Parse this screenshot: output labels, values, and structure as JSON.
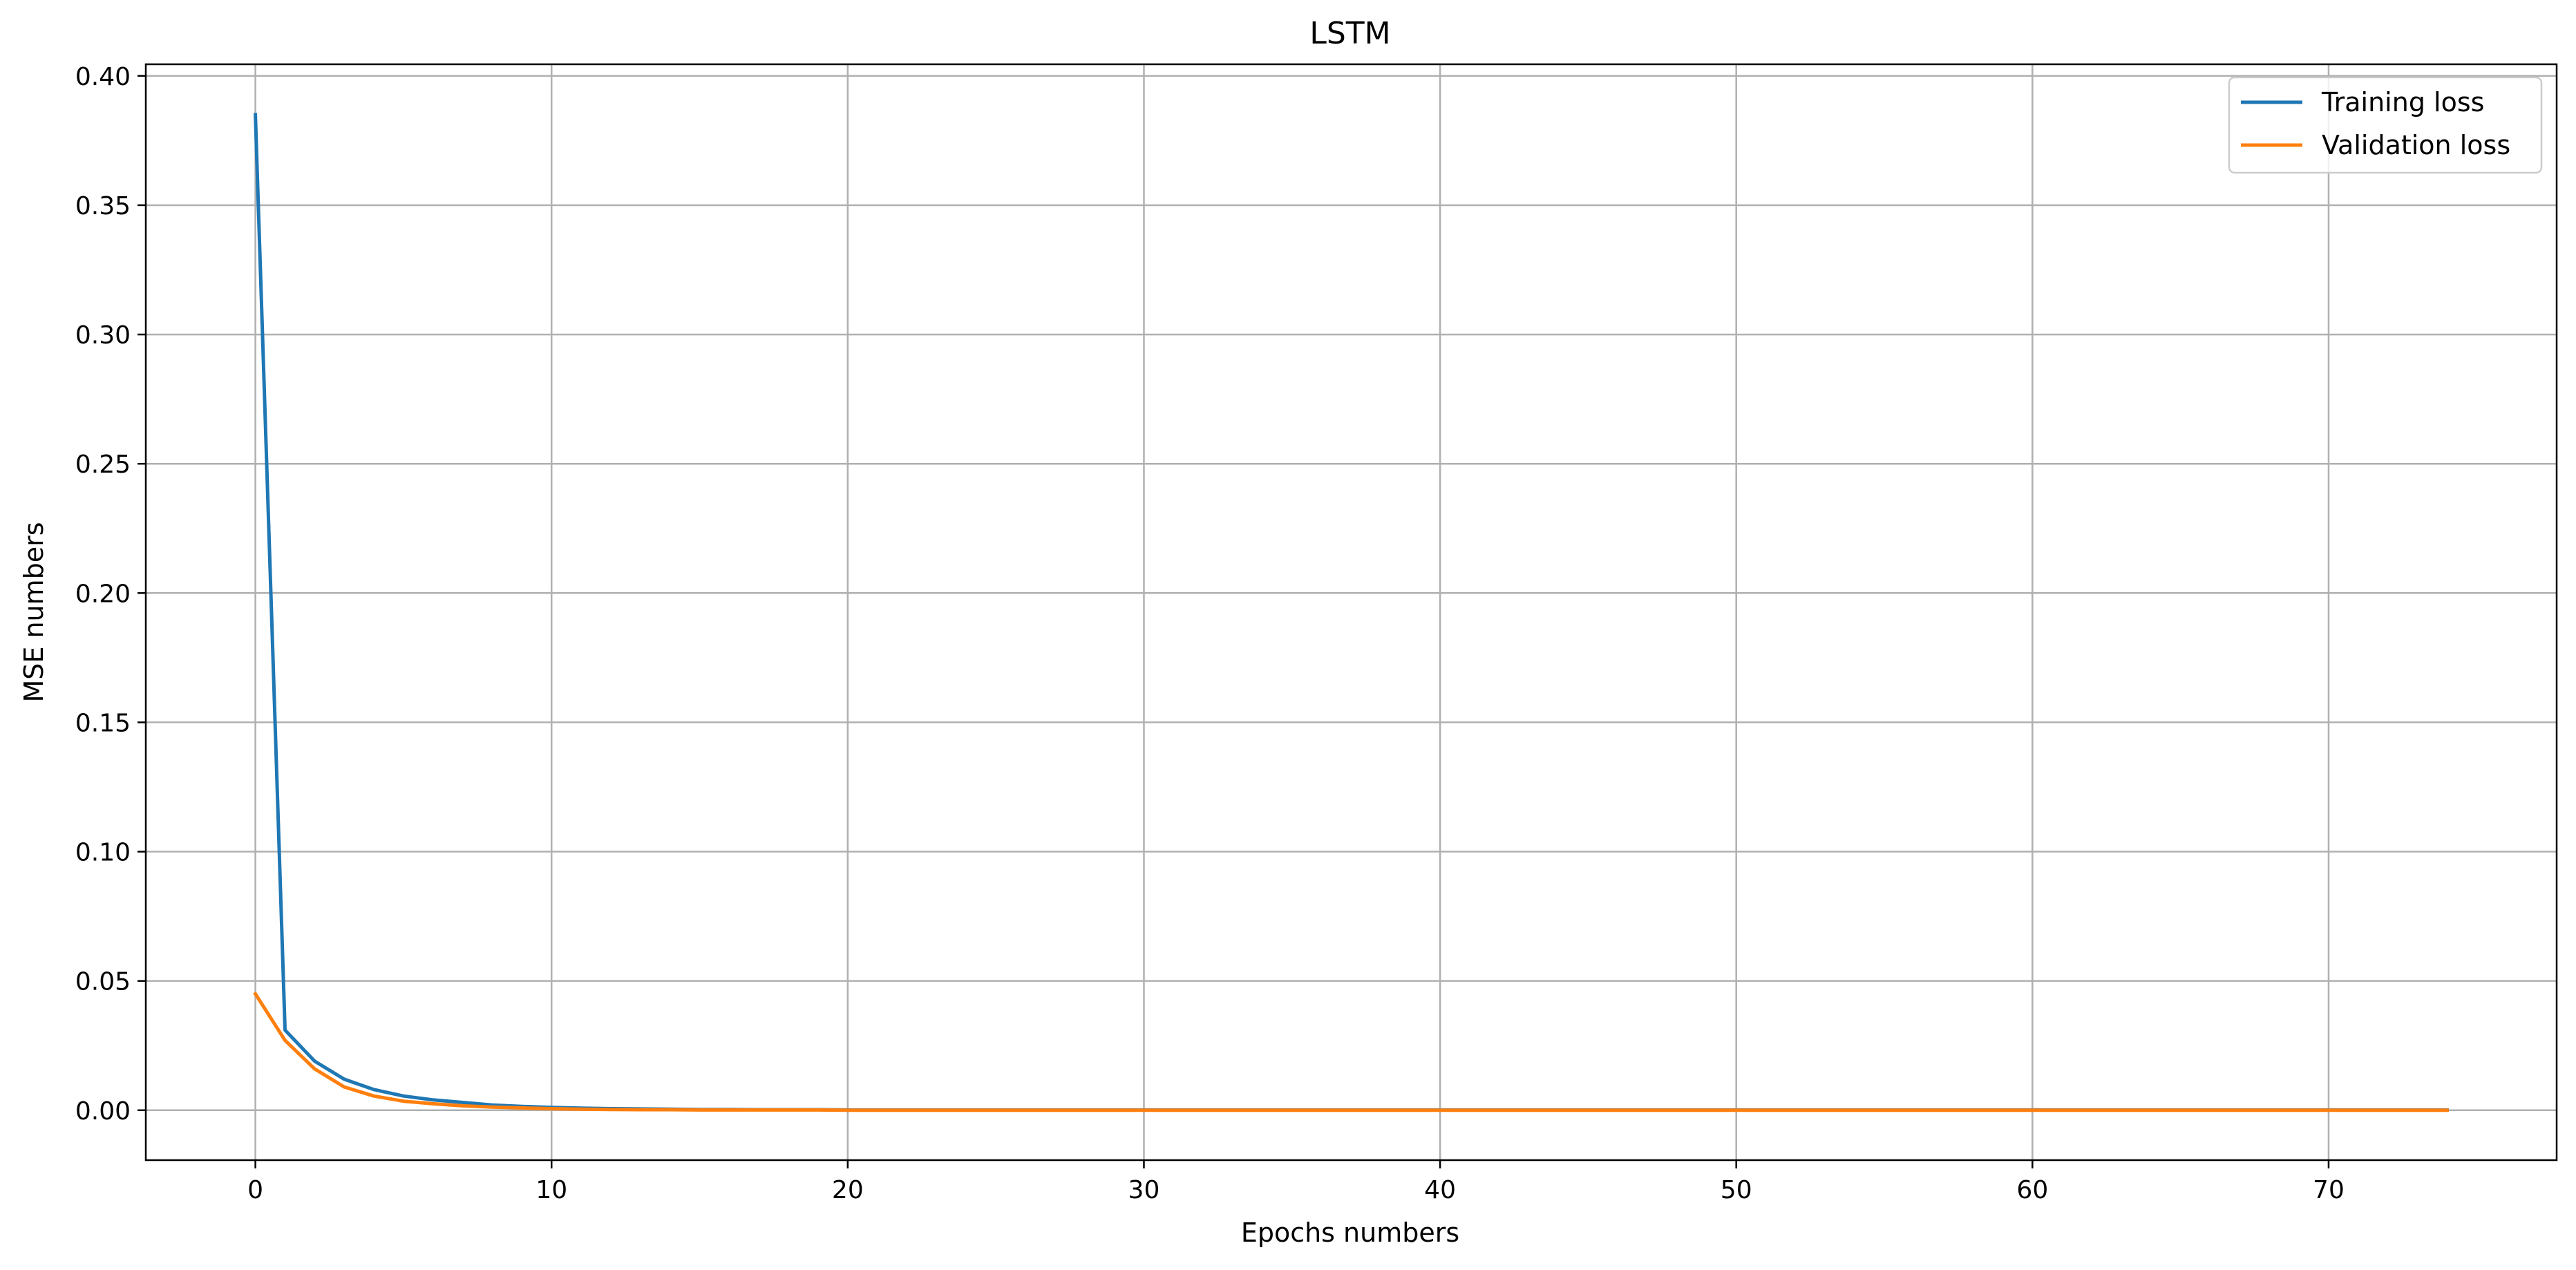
{
  "chart_data": {
    "type": "line",
    "title": "LSTM",
    "xlabel": "Epochs numbers",
    "ylabel": "MSE numbers",
    "xlim": [
      -3.7,
      77.7
    ],
    "ylim": [
      -0.0193,
      0.4045
    ],
    "xticks": [
      0,
      10,
      20,
      30,
      40,
      50,
      60,
      70
    ],
    "xtick_labels": [
      "0",
      "10",
      "20",
      "30",
      "40",
      "50",
      "60",
      "70"
    ],
    "yticks": [
      0.0,
      0.05,
      0.1,
      0.15,
      0.2,
      0.25,
      0.3,
      0.35,
      0.4
    ],
    "ytick_labels": [
      "0.00",
      "0.05",
      "0.10",
      "0.15",
      "0.20",
      "0.25",
      "0.30",
      "0.35",
      "0.40"
    ],
    "grid": true,
    "legend_position": "top-right",
    "series": [
      {
        "name": "Training loss",
        "color": "#1f77b4",
        "x": [
          0,
          1,
          2,
          3,
          4,
          5,
          6,
          7,
          8,
          9,
          10,
          11,
          12,
          13,
          14,
          15,
          16,
          17,
          18,
          19,
          20,
          21,
          22,
          23,
          24,
          25,
          26,
          27,
          28,
          29,
          30,
          31,
          32,
          33,
          34,
          35,
          36,
          37,
          38,
          39,
          40,
          41,
          42,
          43,
          44,
          45,
          46,
          47,
          48,
          49,
          50,
          51,
          52,
          53,
          54,
          55,
          56,
          57,
          58,
          59,
          60,
          61,
          62,
          63,
          64,
          65,
          66,
          67,
          68,
          69,
          70,
          71,
          72,
          73,
          74
        ],
        "values": [
          0.385,
          0.031,
          0.019,
          0.012,
          0.008,
          0.0055,
          0.004,
          0.003,
          0.002,
          0.0015,
          0.0011,
          0.0008,
          0.0006,
          0.0005,
          0.0004,
          0.0003,
          0.0003,
          0.0002,
          0.0002,
          0.0002,
          0.0001,
          0.0001,
          0.0001,
          0.0001,
          0.0001,
          0.0001,
          0.0001,
          0.0001,
          0.0001,
          0.0001,
          0.0001,
          0.0001,
          0.0001,
          0.0001,
          0.0001,
          0.0001,
          0.0001,
          0.0001,
          0.0001,
          0.0001,
          0.0001,
          0.0001,
          0.0001,
          0.0001,
          0.0001,
          0.0001,
          0.0001,
          0.0001,
          0.0001,
          0.0001,
          0.0001,
          0.0001,
          0.0001,
          0.0001,
          0.0001,
          0.0001,
          0.0001,
          0.0001,
          0.0001,
          0.0001,
          0.0001,
          0.0001,
          0.0001,
          0.0001,
          0.0001,
          0.0001,
          0.0001,
          0.0001,
          0.0001,
          0.0001,
          0.0001,
          0.0001,
          0.0001,
          0.0001,
          0.0001
        ]
      },
      {
        "name": "Validation loss",
        "color": "#ff7f0e",
        "x": [
          0,
          1,
          2,
          3,
          4,
          5,
          6,
          7,
          8,
          9,
          10,
          11,
          12,
          13,
          14,
          15,
          16,
          17,
          18,
          19,
          20,
          21,
          22,
          23,
          24,
          25,
          26,
          27,
          28,
          29,
          30,
          31,
          32,
          33,
          34,
          35,
          36,
          37,
          38,
          39,
          40,
          41,
          42,
          43,
          44,
          45,
          46,
          47,
          48,
          49,
          50,
          51,
          52,
          53,
          54,
          55,
          56,
          57,
          58,
          59,
          60,
          61,
          62,
          63,
          64,
          65,
          66,
          67,
          68,
          69,
          70,
          71,
          72,
          73,
          74
        ],
        "values": [
          0.045,
          0.027,
          0.016,
          0.009,
          0.0055,
          0.0035,
          0.0025,
          0.0017,
          0.0012,
          0.0009,
          0.0006,
          0.0004,
          0.0003,
          0.0002,
          0.0002,
          0.0001,
          0.0001,
          0.0001,
          0.0001,
          0.0001,
          0.0,
          0.0,
          0.0,
          0.0,
          0.0,
          0.0,
          0.0,
          0.0,
          0.0,
          0.0,
          0.0,
          0.0,
          0.0,
          0.0,
          0.0,
          0.0,
          0.0,
          0.0,
          0.0,
          0.0,
          0.0,
          0.0,
          0.0,
          0.0,
          0.0,
          0.0,
          0.0,
          0.0,
          0.0,
          0.0,
          0.0,
          0.0,
          0.0,
          0.0,
          0.0,
          0.0,
          0.0,
          0.0,
          0.0,
          0.0,
          0.0,
          0.0,
          0.0,
          0.0,
          0.0,
          0.0,
          0.0,
          0.0,
          0.0,
          0.0,
          0.0,
          0.0,
          0.0,
          0.0,
          0.0
        ]
      }
    ]
  }
}
